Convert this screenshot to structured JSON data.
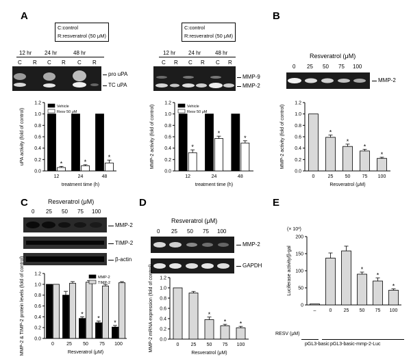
{
  "panel_labels": {
    "a": "A",
    "b": "B",
    "c": "C",
    "d": "D",
    "e": "E"
  },
  "legend_box": {
    "line1": "C:control",
    "line2": "R:resveratrol (50 μM)"
  },
  "panelA_gel1": {
    "times": [
      "12 hr",
      "24 hr",
      "48 hr"
    ],
    "lanes": [
      "C",
      "R",
      "C",
      "R",
      "C",
      "R"
    ],
    "bands": [
      "pro uPA",
      "TC uPA"
    ]
  },
  "panelA_gel2": {
    "times": [
      "12 hr",
      "24 hr",
      "48 hr"
    ],
    "lanes": [
      "C",
      "R",
      "C",
      "R",
      "C",
      "R"
    ],
    "bands": [
      "MMP-9",
      "MMP-2"
    ]
  },
  "panelB_gel": {
    "title": "Resveratrol (μM)",
    "lanes": [
      "0",
      "25",
      "50",
      "75",
      "100"
    ],
    "band": "MMP-2"
  },
  "panelC_gel": {
    "title": "Resveratrol (μM)",
    "lanes": [
      "0",
      "25",
      "50",
      "75",
      "100"
    ],
    "bands": [
      "MMP-2",
      "TIMP-2",
      "β-actin"
    ]
  },
  "panelD_gel": {
    "title": "Resveratrol (μM)",
    "lanes": [
      "0",
      "25",
      "50",
      "75",
      "100"
    ],
    "bands": [
      "MMP-2",
      "GAPDH"
    ]
  },
  "panelE_text": {
    "scale": "(× 10³)",
    "resv": "RESV (μM)",
    "dash": "–",
    "g1": "pGL3-basic",
    "g2": "pGL3-basic-mmp-2-Luc"
  },
  "chart_data": [
    {
      "id": "A1",
      "type": "bar",
      "categories": [
        "12",
        "24",
        "48"
      ],
      "series": [
        {
          "name": "Vehicle",
          "values": [
            1.0,
            1.0,
            1.0
          ]
        },
        {
          "name": "Resv 50 μM",
          "values": [
            0.06,
            0.09,
            0.14
          ]
        }
      ],
      "errors": [
        [
          0,
          0,
          0
        ],
        [
          0.02,
          0.02,
          0.05
        ]
      ],
      "sig": [
        false,
        true
      ],
      "ylabel": "uPA activity (fold of control)",
      "xlabel": "treatment time (h)",
      "ylim": [
        0,
        1.2
      ],
      "yticks": [
        "0.0",
        "0.2",
        "0.4",
        "0.6",
        "0.8",
        "1.0",
        "1.2"
      ],
      "colors": [
        "#000000",
        "#ffffff"
      ],
      "legend": "top-left"
    },
    {
      "id": "A2",
      "type": "bar",
      "categories": [
        "12",
        "24",
        "48"
      ],
      "series": [
        {
          "name": "Vehicle",
          "values": [
            1.0,
            1.0,
            1.0
          ]
        },
        {
          "name": "Resv 50 μM",
          "values": [
            0.32,
            0.57,
            0.49
          ]
        }
      ],
      "errors": [
        [
          0,
          0,
          0
        ],
        [
          0.05,
          0.04,
          0.04
        ]
      ],
      "sig": [
        false,
        true
      ],
      "ylabel": "MMP-2 activity (fold of control)",
      "xlabel": "treatment time (h)",
      "ylim": [
        0,
        1.2
      ],
      "yticks": [
        "0.0",
        "0.2",
        "0.4",
        "0.6",
        "0.8",
        "1.0",
        "1.2"
      ],
      "colors": [
        "#000000",
        "#ffffff"
      ],
      "legend": "top-left"
    },
    {
      "id": "B",
      "type": "bar",
      "categories": [
        "0",
        "25",
        "50",
        "75",
        "100"
      ],
      "series": [
        {
          "values": [
            1.0,
            0.59,
            0.43,
            0.35,
            0.22
          ]
        }
      ],
      "errors": [
        [
          0,
          0.04,
          0.04,
          0.03,
          0.02
        ]
      ],
      "sig": [
        [
          false,
          true,
          true,
          true,
          true
        ]
      ],
      "ylabel": "MMP-2 activity (fold of control)",
      "xlabel": "Resveratrol (μM)",
      "ylim": [
        0,
        1.2
      ],
      "yticks": [
        "0.0",
        "0.2",
        "0.4",
        "0.6",
        "0.8",
        "1.0",
        "1.2"
      ],
      "colors": [
        "#d9d9d9"
      ]
    },
    {
      "id": "C",
      "type": "bar",
      "categories": [
        "0",
        "25",
        "50",
        "75",
        "100"
      ],
      "series": [
        {
          "name": "MMP-2",
          "values": [
            1.0,
            0.8,
            0.37,
            0.29,
            0.21
          ]
        },
        {
          "name": "TIMP-2",
          "values": [
            1.0,
            1.02,
            1.04,
            0.97,
            1.03
          ]
        }
      ],
      "errors": [
        [
          0,
          0.07,
          0.03,
          0.03,
          0.03
        ],
        [
          0,
          0.03,
          0.03,
          0.03,
          0.02
        ]
      ],
      "sig": [
        [
          false,
          false,
          true,
          true,
          true
        ],
        [
          false,
          false,
          false,
          false,
          false
        ]
      ],
      "ylabel": "MMP-2 & TIMP-2 protein levels (fold of control)",
      "xlabel": "Resveratrol (μM)",
      "ylim": [
        0,
        1.2
      ],
      "yticks": [
        "0.0",
        "0.2",
        "0.4",
        "0.6",
        "0.8",
        "1.0",
        "1.2"
      ],
      "colors": [
        "#000000",
        "#d9d9d9"
      ],
      "legend": "top-right"
    },
    {
      "id": "D",
      "type": "bar",
      "categories": [
        "0",
        "25",
        "50",
        "75",
        "100"
      ],
      "series": [
        {
          "values": [
            1.0,
            0.9,
            0.38,
            0.26,
            0.22
          ]
        }
      ],
      "errors": [
        [
          0,
          0.03,
          0.05,
          0.03,
          0.03
        ]
      ],
      "sig": [
        [
          false,
          false,
          true,
          true,
          true
        ]
      ],
      "ylabel": "MMP-2 mRNA expression (fold of control)",
      "xlabel": "Resveratrol (μM)",
      "ylim": [
        0,
        1.2
      ],
      "yticks": [
        "0.0",
        "0.2",
        "0.4",
        "0.6",
        "0.8",
        "1.0",
        "1.2"
      ],
      "colors": [
        "#d9d9d9"
      ]
    },
    {
      "id": "E",
      "type": "bar",
      "categories": [
        "–",
        "0",
        "25",
        "50",
        "75",
        "100"
      ],
      "series": [
        {
          "values": [
            3,
            137,
            158,
            90,
            70,
            43
          ]
        }
      ],
      "errors": [
        [
          0,
          15,
          14,
          6,
          9,
          4
        ]
      ],
      "sig": [
        [
          false,
          false,
          false,
          true,
          true,
          true
        ]
      ],
      "ylabel": "Luciferase activity/β-gal",
      "xlabel": "",
      "ylim": [
        0,
        200
      ],
      "yticks": [
        "0",
        "50",
        "100",
        "150",
        "200"
      ],
      "colors": [
        "#d9d9d9"
      ]
    }
  ]
}
